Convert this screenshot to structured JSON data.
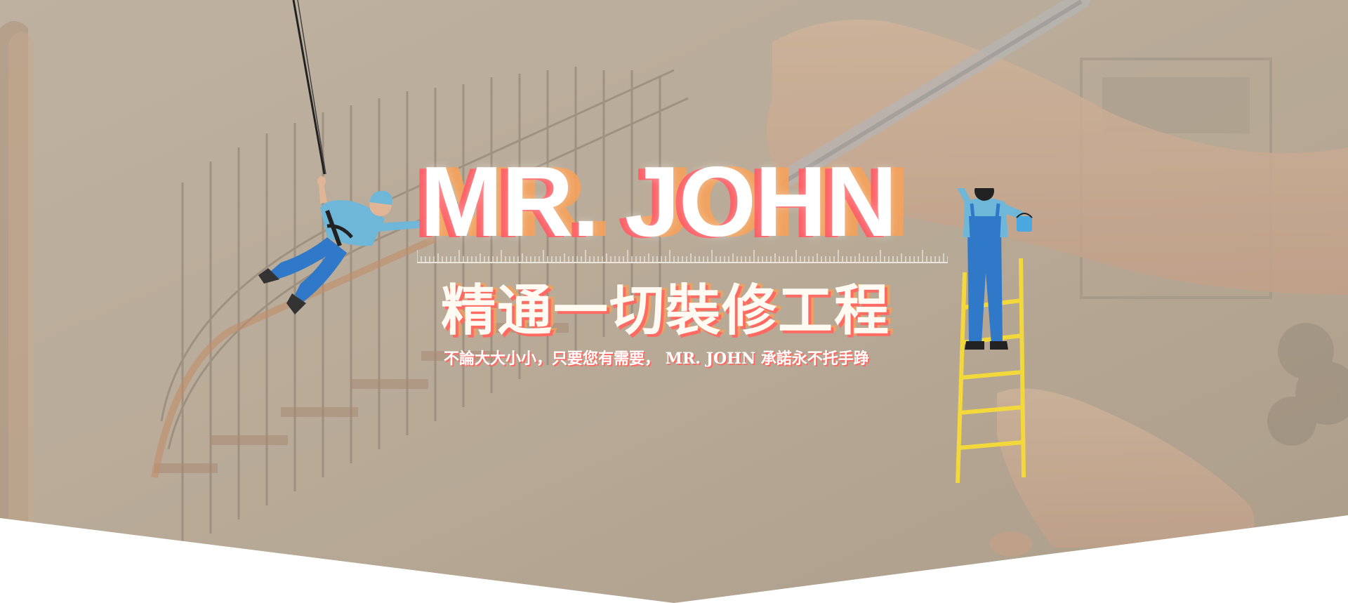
{
  "hero": {
    "logo_text": "MR. JOHN",
    "headline": "精通一切裝修工程",
    "subline": "不論大大小小，只要您有需要， MR. JOHN  承諾永不托手踭"
  },
  "colors": {
    "overlay": "#b5a897",
    "accent_red": "#ff5b63",
    "accent_orange": "#f6a25a",
    "worker_shirt": "#6fb7d8",
    "worker_pants": "#2f79c8",
    "ladder": "#f2d83a"
  },
  "icons": {
    "left_figure": "worker-on-rope-icon",
    "right_figure": "worker-on-ladder-icon"
  }
}
